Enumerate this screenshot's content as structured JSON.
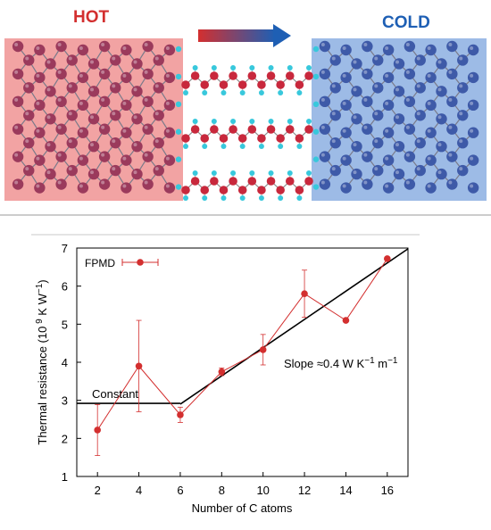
{
  "schematic": {
    "hot_label": "HOT",
    "cold_label": "COLD",
    "hot_color": "#d32f2f",
    "cold_color": "#1e5fb4",
    "hot_region_color": "#f2a3a3",
    "cold_region_color": "#9dbbe6",
    "hot_atom_color": "#9b3a5c",
    "cold_atom_color": "#3e5aa8",
    "chain_atom_color": "#c8283c",
    "hydrogen_color": "#38c8dc",
    "arrow_icon": "heat-flow-arrow-icon"
  },
  "chart_data": {
    "type": "scatter",
    "xlabel": "Number of C atoms",
    "ylabel": "Thermal resistance (10 9 K W -1)",
    "xlim": [
      1,
      17
    ],
    "ylim": [
      1,
      7
    ],
    "xticks": [
      2,
      4,
      6,
      8,
      10,
      12,
      14,
      16
    ],
    "yticks": [
      1,
      2,
      3,
      4,
      5,
      6,
      7
    ],
    "grid": false,
    "legend_position": "top-left",
    "series": [
      {
        "name": "FPMD",
        "color": "#d32f2f",
        "x": [
          2,
          4,
          6,
          8,
          10,
          12,
          14,
          16
        ],
        "y": [
          2.22,
          3.9,
          2.62,
          3.75,
          4.33,
          5.8,
          5.1,
          6.72
        ],
        "err_low": [
          0.67,
          1.2,
          0.2,
          0.1,
          0.4,
          0.62,
          0.0,
          0.0
        ],
        "err_high": [
          0.67,
          1.2,
          0.2,
          0.1,
          0.4,
          0.62,
          0.0,
          0.0
        ]
      }
    ],
    "fit_lines": [
      {
        "x": [
          1,
          6
        ],
        "y": [
          2.92,
          2.92
        ]
      },
      {
        "x": [
          6,
          17
        ],
        "y": [
          2.9,
          6.98
        ]
      }
    ],
    "annotations": {
      "constant": "Constant",
      "slope": "Slope ≈0.4 W K −1 m −1"
    }
  }
}
